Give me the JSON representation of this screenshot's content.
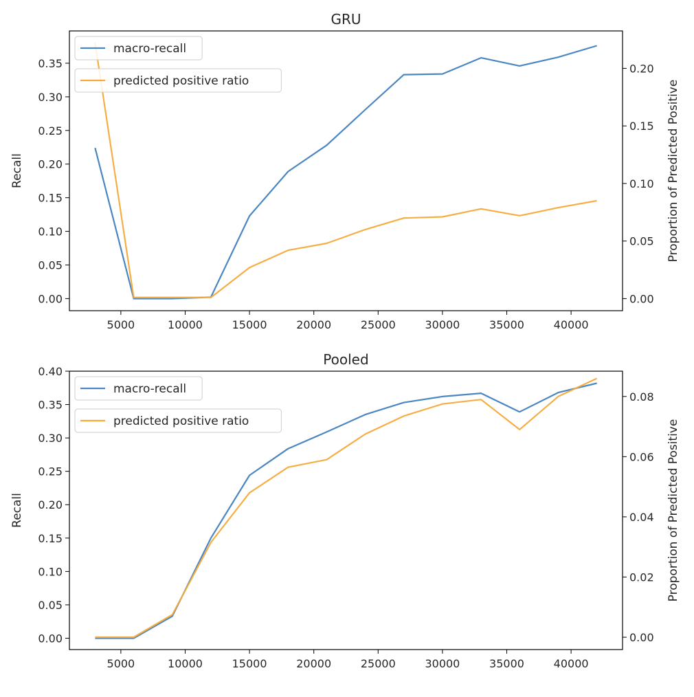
{
  "chart_data": [
    {
      "type": "line",
      "title": "GRU",
      "xlabel": "",
      "ylabel": "Recall",
      "y2label": "Proportion of Predicted Positive",
      "x": [
        3000,
        6000,
        9000,
        12000,
        15000,
        18000,
        21000,
        24000,
        27000,
        30000,
        33000,
        36000,
        39000,
        42000
      ],
      "xlim": [
        1000,
        44000
      ],
      "xticks": [
        5000,
        10000,
        15000,
        20000,
        25000,
        30000,
        35000,
        40000
      ],
      "ylim": [
        -0.018,
        0.398
      ],
      "yticks": [
        0.0,
        0.05,
        0.1,
        0.15,
        0.2,
        0.25,
        0.3,
        0.35
      ],
      "y2lim": [
        -0.0105,
        0.2325
      ],
      "y2ticks": [
        0.0,
        0.05,
        0.1,
        0.15,
        0.2
      ],
      "legend": "top-left",
      "grid": false,
      "series": [
        {
          "name": "macro-recall",
          "axis": "left",
          "color": "#4a86c2",
          "values": [
            0.224,
            0.0,
            0.0,
            0.002,
            0.123,
            0.189,
            0.228,
            0.281,
            0.333,
            0.334,
            0.358,
            0.346,
            0.359,
            0.376
          ]
        },
        {
          "name": "predicted positive ratio",
          "axis": "right",
          "color": "#f6aa3a",
          "values": [
            0.222,
            0.001,
            0.001,
            0.001,
            0.027,
            0.042,
            0.048,
            0.06,
            0.07,
            0.071,
            0.078,
            0.072,
            0.079,
            0.085
          ]
        }
      ]
    },
    {
      "type": "line",
      "title": "Pooled",
      "xlabel": "",
      "ylabel": "Recall",
      "y2label": "Proportion of Predicted Positive",
      "x": [
        3000,
        6000,
        9000,
        12000,
        15000,
        18000,
        21000,
        24000,
        27000,
        30000,
        33000,
        36000,
        39000,
        42000
      ],
      "xlim": [
        1000,
        44000
      ],
      "xticks": [
        5000,
        10000,
        15000,
        20000,
        25000,
        30000,
        35000,
        40000
      ],
      "ylim": [
        -0.017,
        0.4
      ],
      "yticks": [
        0.0,
        0.05,
        0.1,
        0.15,
        0.2,
        0.25,
        0.3,
        0.35,
        0.4
      ],
      "y2lim": [
        -0.0041,
        0.0884
      ],
      "y2ticks": [
        0.0,
        0.02,
        0.04,
        0.06,
        0.08
      ],
      "legend": "top-left",
      "grid": false,
      "series": [
        {
          "name": "macro-recall",
          "axis": "left",
          "color": "#4a86c2",
          "values": [
            0.0,
            0.0,
            0.033,
            0.15,
            0.244,
            0.284,
            0.309,
            0.335,
            0.353,
            0.362,
            0.367,
            0.339,
            0.368,
            0.382
          ]
        },
        {
          "name": "predicted positive ratio",
          "axis": "right",
          "color": "#f6aa3a",
          "values": [
            0.0,
            0.0,
            0.0075,
            0.0315,
            0.048,
            0.0565,
            0.059,
            0.0675,
            0.0735,
            0.0775,
            0.079,
            0.069,
            0.08,
            0.086
          ]
        }
      ]
    }
  ]
}
